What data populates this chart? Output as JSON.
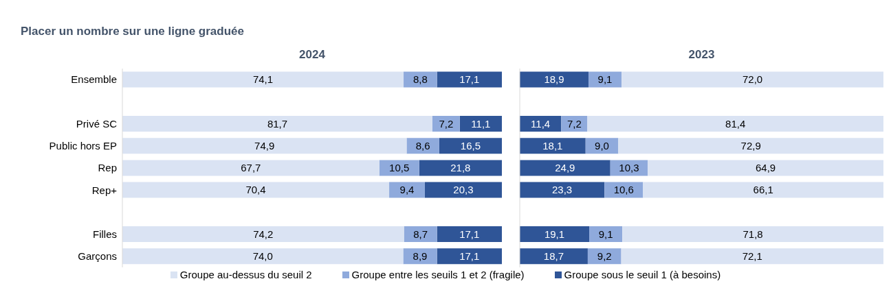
{
  "chart_data": [
    {
      "type": "bar",
      "orientation": "horizontal",
      "stacked": true,
      "title": "2024",
      "annotations": [
        "Placer un nombre sur une ligne graduée"
      ],
      "categories": [
        "Ensemble",
        null,
        "Privé SC",
        "Public hors EP",
        "Rep",
        "Rep+",
        null,
        "Filles",
        "Garçons"
      ],
      "xlim": [
        100,
        0
      ],
      "tick_labels": "y",
      "legend": "bottom",
      "series": [
        {
          "name": "Groupe sous le seuil 1 (à besoins)",
          "color": "#2f5597",
          "values": [
            17.1,
            null,
            11.1,
            16.5,
            21.8,
            20.3,
            null,
            17.1,
            17.1
          ],
          "value_labels": [
            "17,1",
            null,
            "11,1",
            "16,5",
            "21,8",
            "20,3",
            null,
            "17,1",
            "17,1"
          ]
        },
        {
          "name": "Groupe entre les seuils 1 et 2 (fragile)",
          "color": "#8faadc",
          "values": [
            8.8,
            null,
            7.2,
            8.6,
            10.5,
            9.4,
            null,
            8.7,
            8.9
          ],
          "value_labels": [
            "8,8",
            null,
            "7,2",
            "8,6",
            "10,5",
            "9,4",
            null,
            "8,7",
            "8,9"
          ]
        },
        {
          "name": "Groupe au-dessus du seuil 2",
          "color": "#dae3f3",
          "values": [
            74.1,
            null,
            81.7,
            74.9,
            67.7,
            70.4,
            null,
            74.2,
            74.0
          ],
          "value_labels": [
            "74,1",
            null,
            "81,7",
            "74,9",
            "67,7",
            "70,4",
            null,
            "74,2",
            "74,0"
          ]
        }
      ]
    },
    {
      "type": "bar",
      "orientation": "horizontal",
      "stacked": true,
      "title": "2023",
      "categories": [
        null,
        null,
        null,
        null,
        null,
        null,
        null,
        null,
        null
      ],
      "xlim": [
        0,
        100
      ],
      "tick_labels": false,
      "series": [
        {
          "color": "#2f5597",
          "values": [
            18.9,
            null,
            11.4,
            18.1,
            24.9,
            23.3,
            null,
            19.1,
            18.7
          ],
          "value_labels": [
            "18,9",
            null,
            "11,4",
            "18,1",
            "24,9",
            "23,3",
            null,
            "19,1",
            "18,7"
          ]
        },
        {
          "color": "#8faadc",
          "values": [
            9.1,
            null,
            7.2,
            9.0,
            10.3,
            10.6,
            null,
            9.1,
            9.2
          ],
          "value_labels": [
            "9,1",
            null,
            "7,2",
            "9,0",
            "10,3",
            "10,6",
            null,
            "9,1",
            "9,2"
          ]
        },
        {
          "color": "#dae3f3",
          "values": [
            72.0,
            null,
            81.4,
            72.9,
            64.9,
            66.1,
            null,
            71.8,
            72.1
          ],
          "value_labels": [
            "72,0",
            null,
            "81,4",
            "72,9",
            "64,9",
            "66,1",
            null,
            "71,8",
            "72,1"
          ]
        }
      ]
    }
  ]
}
